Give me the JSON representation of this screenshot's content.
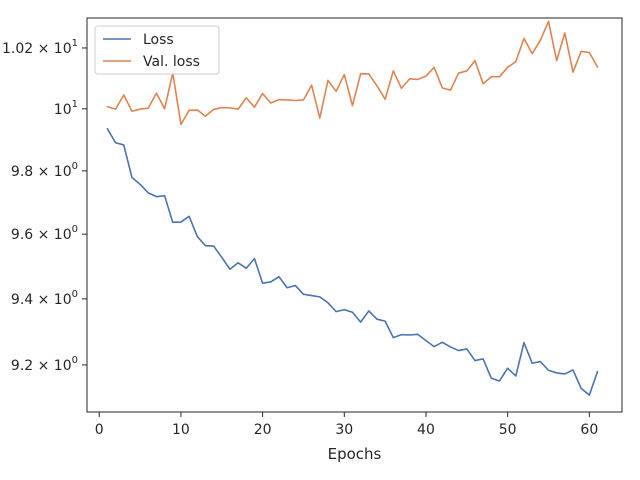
{
  "chart_data": {
    "type": "line",
    "xlabel": "Epochs",
    "ylabel": "",
    "yscale": "log",
    "xlim": [
      -1.5,
      64
    ],
    "ylim": [
      9.06,
      10.3
    ],
    "xticks": [
      0,
      10,
      20,
      30,
      40,
      50,
      60
    ],
    "xtick_labels": [
      "0",
      "10",
      "20",
      "30",
      "40",
      "50",
      "60"
    ],
    "yticks": [
      9.2,
      9.4,
      9.6,
      9.8,
      10.0,
      10.2
    ],
    "ytick_labels": [
      {
        "base": "9.2 × 10",
        "exp": "0"
      },
      {
        "base": "9.4 × 10",
        "exp": "0"
      },
      {
        "base": "9.6 × 10",
        "exp": "0"
      },
      {
        "base": "9.8 × 10",
        "exp": "0"
      },
      {
        "base": "10",
        "exp": "1"
      },
      {
        "base": "1.02 × 10",
        "exp": "1"
      }
    ],
    "grid": false,
    "legend_position": "top-left",
    "x": [
      1,
      2,
      3,
      4,
      5,
      6,
      7,
      8,
      9,
      10,
      11,
      12,
      13,
      14,
      15,
      16,
      17,
      18,
      19,
      20,
      21,
      22,
      23,
      24,
      25,
      26,
      27,
      28,
      29,
      30,
      31,
      32,
      33,
      34,
      35,
      36,
      37,
      38,
      39,
      40,
      41,
      42,
      43,
      44,
      45,
      46,
      47,
      48,
      49,
      50,
      51,
      52,
      53,
      54,
      55,
      56,
      57,
      58,
      59,
      60,
      61
    ],
    "series": [
      {
        "name": "Loss",
        "color": "#4c72b0",
        "values": [
          9.935,
          9.89,
          9.883,
          9.779,
          9.757,
          9.73,
          9.718,
          9.721,
          9.637,
          9.638,
          9.656,
          9.593,
          9.564,
          9.563,
          9.528,
          9.491,
          9.511,
          9.494,
          9.524,
          9.448,
          9.452,
          9.468,
          9.434,
          9.441,
          9.414,
          9.41,
          9.406,
          9.388,
          9.361,
          9.367,
          9.359,
          9.329,
          9.363,
          9.338,
          9.332,
          9.282,
          9.291,
          9.29,
          9.292,
          9.273,
          9.255,
          9.268,
          9.254,
          9.243,
          9.248,
          9.213,
          9.218,
          9.16,
          9.152,
          9.19,
          9.167,
          9.267,
          9.205,
          9.21,
          9.184,
          9.176,
          9.173,
          9.185,
          9.13,
          9.11,
          9.18
        ]
      },
      {
        "name": "Val. loss",
        "color": "#dd8452",
        "values": [
          10.007,
          9.999,
          10.045,
          9.992,
          9.999,
          10.002,
          10.051,
          10.0,
          10.117,
          9.949,
          9.995,
          9.996,
          9.976,
          9.998,
          10.004,
          10.003,
          9.999,
          10.036,
          10.005,
          10.05,
          10.019,
          10.03,
          10.029,
          10.027,
          10.029,
          10.077,
          9.97,
          10.093,
          10.057,
          10.112,
          10.01,
          10.115,
          10.114,
          10.075,
          10.031,
          10.124,
          10.067,
          10.098,
          10.096,
          10.107,
          10.136,
          10.068,
          10.061,
          10.117,
          10.124,
          10.158,
          10.082,
          10.105,
          10.105,
          10.136,
          10.155,
          10.232,
          10.181,
          10.225,
          10.289,
          10.158,
          10.25,
          10.12,
          10.189,
          10.185,
          10.137
        ]
      }
    ]
  }
}
